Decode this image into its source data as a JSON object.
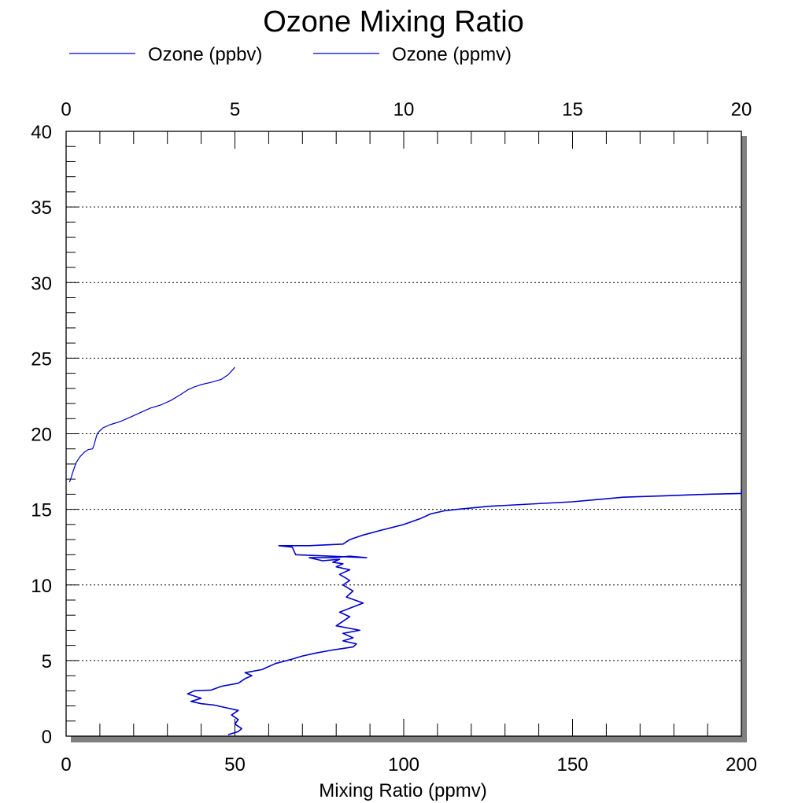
{
  "chart_data": {
    "type": "line",
    "title": "Ozone Mixing Ratio",
    "xlabel": "Mixing Ratio (ppmv)",
    "x_bottom": {
      "min": 0,
      "max": 200,
      "ticks": [
        0,
        50,
        100,
        150,
        200
      ]
    },
    "x_top": {
      "min": 0,
      "max": 20,
      "ticks": [
        0,
        5,
        10,
        15,
        20
      ]
    },
    "y": {
      "min": 0,
      "max": 40,
      "ticks": [
        0,
        5,
        10,
        15,
        20,
        25,
        30,
        35,
        40
      ]
    },
    "grid": "horizontal dotted",
    "legend_position": "top",
    "colors": {
      "series": "#0000cc",
      "shadow": "#808080",
      "grid": "#000000"
    },
    "series": [
      {
        "name": "Ozone (ppbv)",
        "axis": "bottom",
        "x": [
          48,
          51,
          52,
          50,
          51,
          49,
          51,
          47,
          44,
          40,
          37,
          40,
          36,
          38,
          43,
          46,
          51,
          53,
          55,
          53,
          58,
          62,
          67,
          70,
          74,
          79,
          85,
          86,
          82,
          85,
          82,
          87,
          80,
          82,
          84,
          81,
          88,
          83,
          85,
          82,
          84,
          81,
          84,
          80,
          82,
          79,
          81,
          76,
          72,
          79,
          84,
          89,
          68,
          67,
          63,
          72,
          82,
          84,
          88,
          93,
          100,
          105,
          108,
          112,
          116,
          125,
          150,
          165,
          178,
          190,
          200,
          200,
          200
        ],
        "y": [
          0.1,
          0.3,
          0.5,
          0.8,
          1.1,
          1.4,
          1.7,
          1.9,
          2.05,
          2.15,
          2.3,
          2.5,
          2.8,
          3.0,
          3.05,
          3.3,
          3.5,
          3.8,
          4.0,
          4.2,
          4.4,
          4.8,
          5.1,
          5.3,
          5.5,
          5.7,
          5.9,
          6.1,
          6.3,
          6.5,
          6.8,
          7.0,
          7.3,
          7.6,
          7.9,
          8.2,
          8.8,
          9.2,
          9.6,
          10.0,
          10.3,
          10.7,
          11.0,
          11.2,
          11.4,
          11.5,
          11.7,
          11.6,
          11.8,
          11.8,
          11.9,
          11.8,
          12.0,
          12.5,
          12.6,
          12.6,
          12.7,
          13.0,
          13.3,
          13.6,
          14.0,
          14.4,
          14.7,
          14.9,
          15.0,
          15.2,
          15.5,
          15.8,
          15.9,
          16.0,
          16.05,
          16.1,
          16.3
        ]
      },
      {
        "name": "Ozone (ppmv)",
        "axis": "top",
        "x": [
          0.1,
          0.15,
          0.22,
          0.3,
          0.42,
          0.55,
          0.65,
          0.78,
          0.82,
          0.87,
          0.92,
          1.0,
          1.1,
          1.3,
          1.6,
          1.9,
          2.2,
          2.5,
          2.8,
          3.1,
          3.4,
          3.6,
          3.8,
          4.0,
          4.3,
          4.6,
          4.8,
          4.92,
          5.0
        ],
        "y": [
          16.8,
          17.1,
          17.6,
          18.1,
          18.5,
          18.8,
          18.95,
          19.0,
          19.2,
          19.6,
          20.0,
          20.2,
          20.4,
          20.6,
          20.8,
          21.1,
          21.4,
          21.7,
          21.9,
          22.2,
          22.6,
          22.9,
          23.1,
          23.25,
          23.4,
          23.6,
          23.9,
          24.2,
          24.4
        ]
      }
    ]
  }
}
